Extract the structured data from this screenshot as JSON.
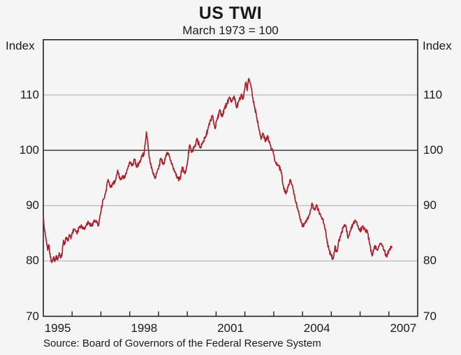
{
  "page": {
    "background": "#f5f5f5"
  },
  "chart_data": {
    "type": "line",
    "title": "US TWI",
    "subtitle": "March 1973 = 100",
    "ylabel_left": "Index",
    "ylabel_right": "Index",
    "source": "Source: Board of Governors of the Federal Reserve System",
    "ylim": [
      70,
      120
    ],
    "yticks": [
      70,
      80,
      90,
      100,
      110
    ],
    "emphasized_gridline": 100,
    "xlim": [
      1995,
      2008
    ],
    "xtick_labels": [
      "1995",
      "1998",
      "2001",
      "2004",
      "2007"
    ],
    "xtick_label_years": [
      1995,
      1998,
      2001,
      2004,
      2007
    ],
    "grid": "horizontal",
    "legend": "none",
    "colors": {
      "line": "#a8202c",
      "grid_light": "#b3b3b3",
      "grid_dark": "#3c3c3c",
      "frame": "#222222",
      "text": "#1a1a1a"
    },
    "series": [
      {
        "name": "US TWI (March 1973 = 100)",
        "points": [
          [
            1995.0,
            87.9
          ],
          [
            1995.04,
            85.6
          ],
          [
            1995.1,
            83.8
          ],
          [
            1995.15,
            82.0
          ],
          [
            1995.19,
            82.9
          ],
          [
            1995.24,
            81.0
          ],
          [
            1995.29,
            79.7
          ],
          [
            1995.35,
            80.6
          ],
          [
            1995.4,
            79.9
          ],
          [
            1995.45,
            81.0
          ],
          [
            1995.5,
            80.2
          ],
          [
            1995.55,
            81.5
          ],
          [
            1995.6,
            80.5
          ],
          [
            1995.65,
            81.2
          ],
          [
            1995.7,
            83.7
          ],
          [
            1995.75,
            83.1
          ],
          [
            1995.8,
            84.3
          ],
          [
            1995.85,
            83.6
          ],
          [
            1995.9,
            84.7
          ],
          [
            1995.96,
            84.0
          ],
          [
            1996.0,
            85.1
          ],
          [
            1996.08,
            85.7
          ],
          [
            1996.17,
            84.9
          ],
          [
            1996.25,
            86.1
          ],
          [
            1996.33,
            86.4
          ],
          [
            1996.42,
            85.8
          ],
          [
            1996.5,
            86.6
          ],
          [
            1996.58,
            87.0
          ],
          [
            1996.67,
            86.3
          ],
          [
            1996.75,
            87.1
          ],
          [
            1996.83,
            87.3
          ],
          [
            1996.92,
            86.4
          ],
          [
            1997.0,
            88.9
          ],
          [
            1997.08,
            91.2
          ],
          [
            1997.17,
            92.4
          ],
          [
            1997.25,
            94.7
          ],
          [
            1997.33,
            93.3
          ],
          [
            1997.42,
            93.9
          ],
          [
            1997.5,
            94.5
          ],
          [
            1997.58,
            96.4
          ],
          [
            1997.67,
            94.7
          ],
          [
            1997.75,
            95.4
          ],
          [
            1997.83,
            95.0
          ],
          [
            1997.92,
            96.6
          ],
          [
            1998.0,
            97.9
          ],
          [
            1998.08,
            97.2
          ],
          [
            1998.17,
            98.4
          ],
          [
            1998.25,
            96.9
          ],
          [
            1998.33,
            97.7
          ],
          [
            1998.42,
            99.0
          ],
          [
            1998.5,
            99.3
          ],
          [
            1998.54,
            101.2
          ],
          [
            1998.58,
            103.4
          ],
          [
            1998.63,
            101.3
          ],
          [
            1998.67,
            99.0
          ],
          [
            1998.71,
            97.7
          ],
          [
            1998.79,
            96.2
          ],
          [
            1998.88,
            94.9
          ],
          [
            1998.94,
            96.0
          ],
          [
            1999.0,
            96.7
          ],
          [
            1999.08,
            98.6
          ],
          [
            1999.17,
            97.4
          ],
          [
            1999.25,
            98.9
          ],
          [
            1999.33,
            99.5
          ],
          [
            1999.42,
            98.2
          ],
          [
            1999.5,
            97.0
          ],
          [
            1999.58,
            96.1
          ],
          [
            1999.67,
            95.0
          ],
          [
            1999.75,
            94.8
          ],
          [
            1999.83,
            97.0
          ],
          [
            1999.92,
            95.8
          ],
          [
            2000.0,
            97.6
          ],
          [
            2000.08,
            101.0
          ],
          [
            2000.15,
            99.6
          ],
          [
            2000.25,
            100.6
          ],
          [
            2000.33,
            102.1
          ],
          [
            2000.46,
            100.4
          ],
          [
            2000.54,
            101.5
          ],
          [
            2000.63,
            102.3
          ],
          [
            2000.71,
            103.7
          ],
          [
            2000.79,
            105.3
          ],
          [
            2000.88,
            106.3
          ],
          [
            2000.96,
            103.9
          ],
          [
            2001.04,
            105.6
          ],
          [
            2001.13,
            107.4
          ],
          [
            2001.21,
            106.1
          ],
          [
            2001.29,
            107.6
          ],
          [
            2001.38,
            108.5
          ],
          [
            2001.46,
            109.6
          ],
          [
            2001.54,
            108.7
          ],
          [
            2001.63,
            109.8
          ],
          [
            2001.71,
            107.7
          ],
          [
            2001.79,
            108.9
          ],
          [
            2001.88,
            110.1
          ],
          [
            2001.94,
            109.3
          ],
          [
            2002.0,
            111.2
          ],
          [
            2002.04,
            112.3
          ],
          [
            2002.08,
            110.8
          ],
          [
            2002.13,
            113.0
          ],
          [
            2002.21,
            111.7
          ],
          [
            2002.27,
            109.5
          ],
          [
            2002.33,
            108.0
          ],
          [
            2002.42,
            105.7
          ],
          [
            2002.5,
            103.6
          ],
          [
            2002.56,
            102.0
          ],
          [
            2002.63,
            103.1
          ],
          [
            2002.71,
            101.6
          ],
          [
            2002.79,
            102.7
          ],
          [
            2002.88,
            101.0
          ],
          [
            2002.96,
            100.1
          ],
          [
            2003.0,
            99.2
          ],
          [
            2003.08,
            97.6
          ],
          [
            2003.17,
            97.2
          ],
          [
            2003.25,
            96.4
          ],
          [
            2003.33,
            93.6
          ],
          [
            2003.42,
            92.1
          ],
          [
            2003.5,
            93.5
          ],
          [
            2003.58,
            94.7
          ],
          [
            2003.67,
            93.1
          ],
          [
            2003.75,
            90.9
          ],
          [
            2003.83,
            89.4
          ],
          [
            2003.92,
            87.6
          ],
          [
            2004.0,
            86.2
          ],
          [
            2004.08,
            86.9
          ],
          [
            2004.17,
            87.7
          ],
          [
            2004.25,
            88.4
          ],
          [
            2004.33,
            90.5
          ],
          [
            2004.42,
            89.2
          ],
          [
            2004.5,
            90.1
          ],
          [
            2004.58,
            88.6
          ],
          [
            2004.67,
            87.8
          ],
          [
            2004.75,
            86.7
          ],
          [
            2004.83,
            84.3
          ],
          [
            2004.92,
            82.0
          ],
          [
            2005.0,
            81.0
          ],
          [
            2005.06,
            80.3
          ],
          [
            2005.13,
            82.7
          ],
          [
            2005.19,
            81.6
          ],
          [
            2005.25,
            83.4
          ],
          [
            2005.33,
            84.7
          ],
          [
            2005.42,
            86.2
          ],
          [
            2005.5,
            86.5
          ],
          [
            2005.58,
            84.1
          ],
          [
            2005.67,
            85.5
          ],
          [
            2005.75,
            86.6
          ],
          [
            2005.83,
            87.4
          ],
          [
            2005.92,
            86.4
          ],
          [
            2006.0,
            85.3
          ],
          [
            2006.08,
            86.3
          ],
          [
            2006.17,
            85.7
          ],
          [
            2006.25,
            85.4
          ],
          [
            2006.33,
            83.1
          ],
          [
            2006.42,
            80.9
          ],
          [
            2006.5,
            82.7
          ],
          [
            2006.58,
            82.0
          ],
          [
            2006.67,
            82.9
          ],
          [
            2006.75,
            83.1
          ],
          [
            2006.83,
            81.9
          ],
          [
            2006.92,
            80.7
          ],
          [
            2007.0,
            81.9
          ],
          [
            2007.1,
            82.6
          ]
        ]
      }
    ]
  }
}
